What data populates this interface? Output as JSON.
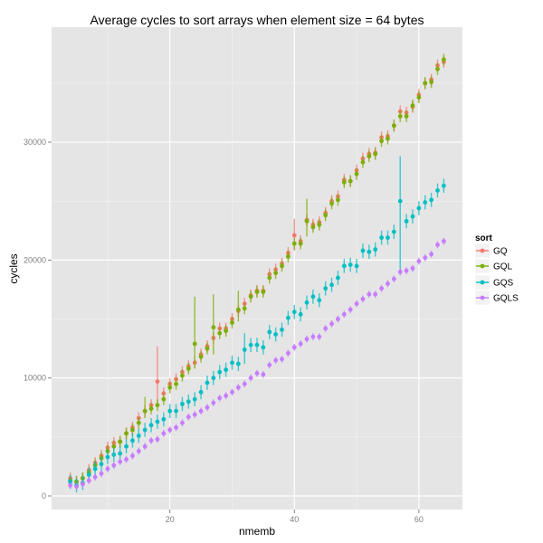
{
  "chart_data": {
    "type": "scatter",
    "title": "Average cycles to sort arrays when element size = 64 bytes",
    "xlabel": "nmemb",
    "ylabel": "cycles",
    "xlim": [
      1,
      67
    ],
    "ylim": [
      -1150,
      39750
    ],
    "xticks": [
      20,
      40,
      60
    ],
    "xticks_minor": [
      10,
      30,
      50
    ],
    "yticks": [
      0,
      10000,
      20000,
      30000
    ],
    "yticks_minor": [
      5000,
      15000,
      25000,
      35000
    ],
    "ytick_labels": [
      "0",
      "10000",
      "20000",
      "30000"
    ],
    "xtick_labels": [
      "20",
      "40",
      "60"
    ],
    "grid": true,
    "legend": {
      "title": "sort",
      "position": "right"
    },
    "x_start": 4,
    "series": [
      {
        "name": "GQ",
        "color": "#F8766D",
        "err": 500,
        "values": [
          1500,
          1200,
          1500,
          2200,
          2800,
          3400,
          4100,
          4500,
          4600,
          5300,
          5800,
          6600,
          7200,
          7700,
          9700,
          8700,
          9500,
          9900,
          10500,
          11000,
          11300,
          12000,
          12700,
          13400,
          14200,
          14200,
          15000,
          15700,
          16300,
          17000,
          17400,
          17400,
          18800,
          19200,
          19700,
          20600,
          22100,
          21600,
          23400,
          23000,
          23200,
          24000,
          25000,
          25400,
          26800,
          26700,
          27600,
          28600,
          29000,
          29100,
          30400,
          30500,
          31400,
          32600,
          32500,
          33000,
          34000,
          35000,
          35300,
          36500,
          36800
        ],
        "spikes": [
          {
            "x": 18,
            "lo": 7800,
            "hi": 12700
          },
          {
            "x": 40,
            "lo": 20800,
            "hi": 23500
          }
        ]
      },
      {
        "name": "GQL",
        "color": "#7CAE00",
        "err": 500,
        "values": [
          1300,
          1200,
          1500,
          2000,
          2600,
          3200,
          3800,
          4200,
          4600,
          5300,
          5600,
          6200,
          7200,
          7400,
          7700,
          8200,
          9200,
          9500,
          10200,
          10800,
          12900,
          11800,
          12500,
          14300,
          13800,
          14000,
          14700,
          15800,
          15900,
          16900,
          17300,
          17300,
          18500,
          18900,
          19500,
          20300,
          21400,
          21400,
          23300,
          22800,
          23000,
          23800,
          24800,
          25100,
          26600,
          26700,
          27300,
          28300,
          28800,
          29000,
          30100,
          30300,
          31400,
          32200,
          32200,
          33100,
          33800,
          35000,
          35100,
          36200,
          37000
        ],
        "spikes": [
          {
            "x": 16,
            "lo": 6600,
            "hi": 8400
          },
          {
            "x": 24,
            "lo": 10800,
            "hi": 16900
          },
          {
            "x": 27,
            "lo": 12000,
            "hi": 17100
          },
          {
            "x": 31,
            "lo": 14800,
            "hi": 17400
          },
          {
            "x": 42,
            "lo": 22000,
            "hi": 25200
          }
        ]
      },
      {
        "name": "GQS",
        "color": "#00BFC4",
        "err": 600,
        "values": [
          1200,
          900,
          1100,
          1800,
          2300,
          2700,
          3300,
          3500,
          3600,
          4200,
          4700,
          5100,
          5600,
          6000,
          6300,
          6500,
          7200,
          7200,
          7800,
          8000,
          8200,
          8800,
          9600,
          10000,
          10500,
          10700,
          11300,
          11200,
          12400,
          12800,
          12800,
          12600,
          13900,
          13700,
          14100,
          15100,
          15600,
          15400,
          16400,
          16900,
          16600,
          17600,
          17900,
          18500,
          19500,
          19600,
          19500,
          20800,
          20700,
          20900,
          21900,
          21900,
          22400,
          25000,
          23300,
          23700,
          24400,
          24900,
          25100,
          25900,
          26300
        ],
        "spikes": [
          {
            "x": 57,
            "lo": 19000,
            "hi": 28800
          },
          {
            "x": 32,
            "lo": 11200,
            "hi": 13800
          }
        ]
      },
      {
        "name": "GQLS",
        "color": "#C77CFF",
        "err": 300,
        "values": [
          900,
          800,
          1000,
          1300,
          1600,
          1900,
          2300,
          2600,
          2900,
          3100,
          3400,
          3800,
          4200,
          4700,
          4800,
          5300,
          5600,
          5800,
          6200,
          6700,
          6900,
          7200,
          7500,
          7900,
          8300,
          8500,
          8800,
          9200,
          9500,
          10000,
          10400,
          10300,
          11100,
          11500,
          11600,
          12100,
          12600,
          12900,
          13300,
          13500,
          13500,
          14200,
          14600,
          15000,
          15400,
          15800,
          16300,
          16700,
          17100,
          17100,
          17600,
          18000,
          18400,
          19000,
          19100,
          19300,
          19900,
          20200,
          20500,
          21300,
          21600
        ],
        "spikes": []
      }
    ]
  }
}
